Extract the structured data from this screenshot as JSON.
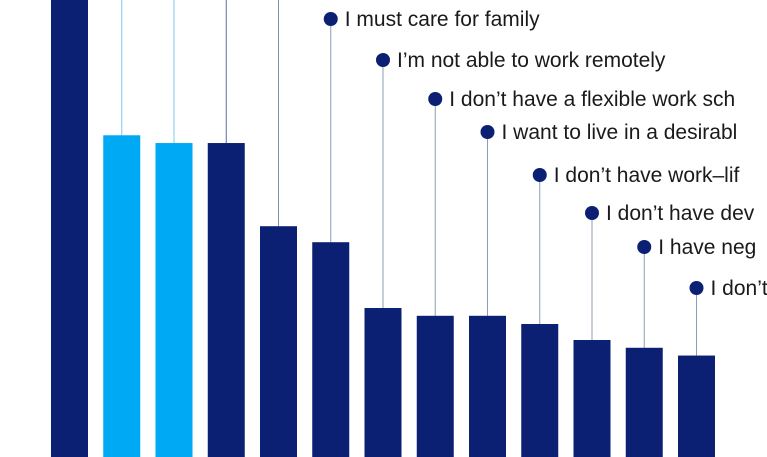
{
  "chart_data": {
    "type": "bar",
    "title": "",
    "xlabel": "",
    "ylabel": "",
    "ylim": [
      0,
      100
    ],
    "colors": {
      "dark": "#0b1f73",
      "light": "#00a9f4",
      "leader": "#8c9db5"
    },
    "bars": [
      {
        "value": 100,
        "color": "dark",
        "label": ""
      },
      {
        "value": 70.4,
        "color": "light",
        "label": ""
      },
      {
        "value": 68.7,
        "color": "light",
        "label": ""
      },
      {
        "value": 68.7,
        "color": "dark",
        "label": ""
      },
      {
        "value": 50.5,
        "color": "dark",
        "label": ""
      },
      {
        "value": 47.0,
        "color": "dark",
        "label": "I must care for family"
      },
      {
        "value": 32.6,
        "color": "dark",
        "label": "I’m not able to work remotely"
      },
      {
        "value": 30.9,
        "color": "dark",
        "label": "I don’t have a flexible work sch"
      },
      {
        "value": 30.9,
        "color": "dark",
        "label": "I want to live in a desirabl"
      },
      {
        "value": 29.1,
        "color": "dark",
        "label": "I don’t have work–lif"
      },
      {
        "value": 25.6,
        "color": "dark",
        "label": "I don’t have dev"
      },
      {
        "value": 23.9,
        "color": "dark",
        "label": "I have neg"
      },
      {
        "value": 22.2,
        "color": "dark",
        "label": "I don’t"
      }
    ]
  }
}
